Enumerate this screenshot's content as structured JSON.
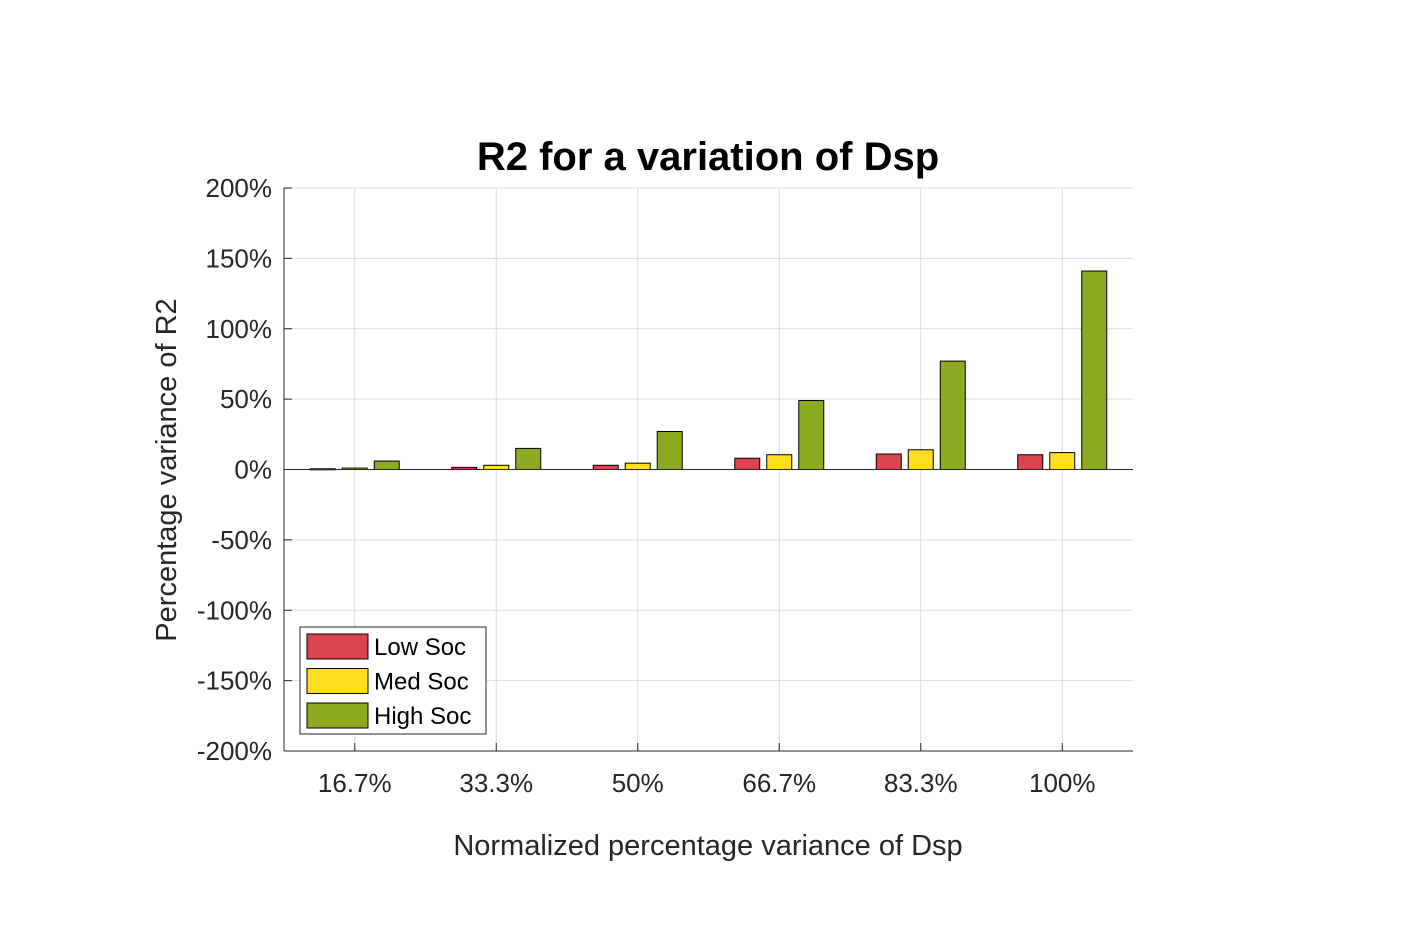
{
  "chart_data": {
    "type": "bar",
    "title": "R2 for a variation of Dsp",
    "xlabel": "Normalized percentage variance of Dsp",
    "ylabel": "Percentage variance of R2",
    "categories": [
      "16.7%",
      "33.3%",
      "50%",
      "66.7%",
      "83.3%",
      "100%"
    ],
    "yticks": [
      -200,
      -150,
      -100,
      -50,
      0,
      50,
      100,
      150,
      200
    ],
    "ytick_labels": [
      "-200%",
      "-150%",
      "-100%",
      "-50%",
      "0%",
      "50%",
      "100%",
      "150%",
      "200%"
    ],
    "ylim": [
      -200,
      200
    ],
    "grid": true,
    "legend_position": "bottom-left",
    "series": [
      {
        "name": "Low Soc",
        "color": "#d9444d",
        "values": [
          0.5,
          1.5,
          3,
          8,
          11,
          10.5
        ]
      },
      {
        "name": "Med Soc",
        "color": "#ffdd22",
        "values": [
          1,
          3,
          4.5,
          10.5,
          14,
          12
        ]
      },
      {
        "name": "High Soc",
        "color": "#8dab22",
        "values": [
          6,
          15,
          27,
          49,
          77,
          141
        ]
      }
    ]
  }
}
